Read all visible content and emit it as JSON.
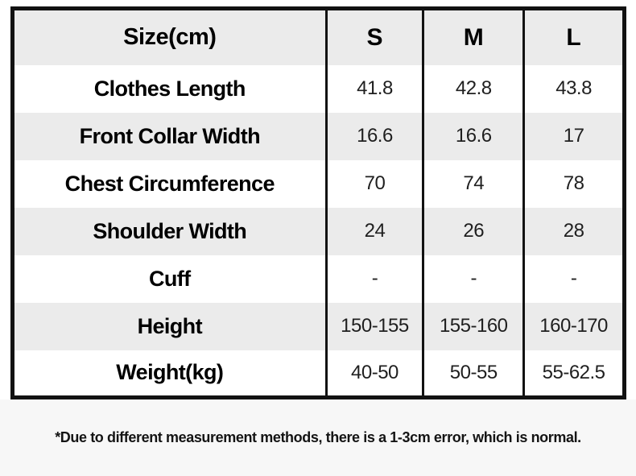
{
  "chart_data": {
    "type": "table",
    "title": "Size(cm)",
    "columns": [
      "S",
      "M",
      "L"
    ],
    "rows": [
      {
        "label": "Clothes Length",
        "values": [
          "41.8",
          "42.8",
          "43.8"
        ]
      },
      {
        "label": "Front Collar Width",
        "values": [
          "16.6",
          "16.6",
          "17"
        ]
      },
      {
        "label": "Chest Circumference",
        "values": [
          "70",
          "74",
          "78"
        ]
      },
      {
        "label": "Shoulder Width",
        "values": [
          "24",
          "26",
          "28"
        ]
      },
      {
        "label": "Cuff",
        "values": [
          "-",
          "-",
          "-"
        ]
      },
      {
        "label": "Height",
        "values": [
          "150-155",
          "155-160",
          "160-170"
        ]
      },
      {
        "label": "Weight(kg)",
        "values": [
          "40-50",
          "50-55",
          "55-62.5"
        ]
      }
    ],
    "layout_hints": {
      "striped_rows": true,
      "stripe_color": "#ebebeb",
      "internal_horizontal_lines": false,
      "internal_vertical_lines": true
    }
  },
  "footer": {
    "note": "*Due to different measurement methods, there is a 1-3cm error, which is normal."
  },
  "colors": {
    "stripe": "#ebebeb",
    "border": "#121212",
    "footer_bg": "#f7f7f7",
    "label_text": "#000000",
    "value_text": "#1f1f1f"
  }
}
